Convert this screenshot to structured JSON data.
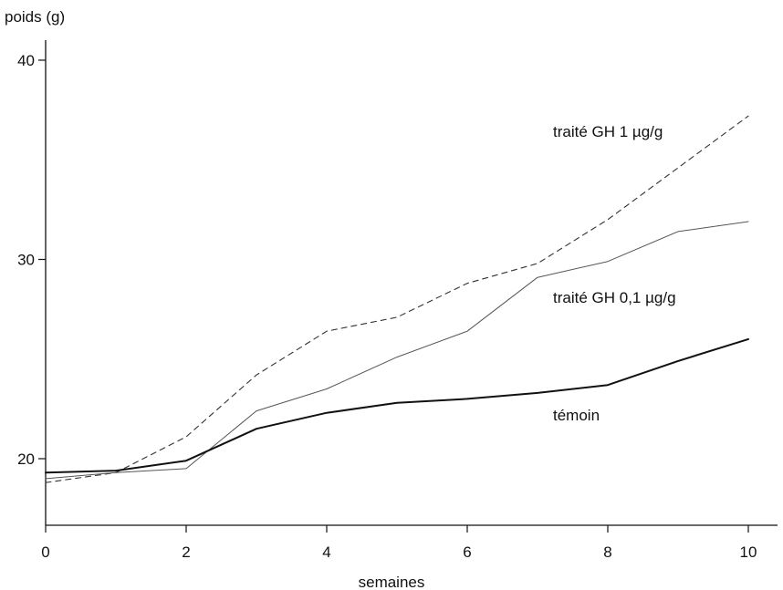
{
  "chart_data": {
    "type": "line",
    "title": "",
    "xlabel": "semaines",
    "ylabel": "poids (g)",
    "xlim": [
      0,
      10
    ],
    "ylim": [
      16.7,
      41
    ],
    "x_ticks": [
      0,
      2,
      4,
      6,
      8,
      10
    ],
    "y_ticks": [
      20,
      30,
      40
    ],
    "grid": false,
    "x": [
      0,
      1,
      2,
      3,
      4,
      5,
      6,
      7,
      8,
      9,
      10
    ],
    "series": [
      {
        "name": "traité GH 1 µg/g",
        "style": "dashed",
        "color": "#333333",
        "values": [
          18.8,
          19.3,
          21.1,
          24.2,
          26.4,
          27.1,
          28.8,
          29.8,
          32.0,
          34.6,
          37.2
        ]
      },
      {
        "name": "traité GH 0,1 µg/g",
        "style": "thin",
        "color": "#555555",
        "values": [
          19.0,
          19.3,
          19.5,
          22.4,
          23.5,
          25.1,
          26.4,
          29.1,
          29.9,
          31.4,
          31.9
        ]
      },
      {
        "name": "témoin",
        "style": "solid",
        "color": "#111111",
        "values": [
          19.3,
          19.4,
          19.9,
          21.5,
          22.3,
          22.8,
          23.0,
          23.3,
          23.7,
          24.9,
          26.0
        ]
      }
    ]
  }
}
